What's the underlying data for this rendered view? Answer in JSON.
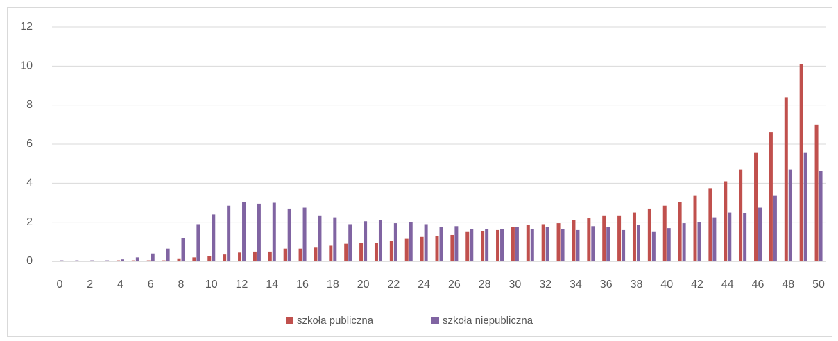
{
  "chart_data": {
    "type": "bar",
    "categories": [
      0,
      null,
      2,
      null,
      4,
      null,
      6,
      null,
      8,
      null,
      10,
      null,
      12,
      null,
      14,
      null,
      16,
      null,
      18,
      null,
      20,
      null,
      22,
      null,
      24,
      null,
      26,
      null,
      28,
      null,
      30,
      null,
      32,
      null,
      34,
      null,
      36,
      null,
      38,
      null,
      40,
      null,
      42,
      null,
      44,
      null,
      46,
      null,
      48,
      null,
      50
    ],
    "series": [
      {
        "name": "szkoła publiczna",
        "color": "#c0504d",
        "values": [
          0.01,
          0.01,
          0.01,
          0.02,
          0.05,
          0.05,
          0.05,
          0.05,
          0.15,
          0.2,
          0.25,
          0.35,
          0.45,
          0.5,
          0.5,
          0.65,
          0.65,
          0.7,
          0.8,
          0.9,
          0.95,
          0.95,
          1.05,
          1.15,
          1.25,
          1.3,
          1.35,
          1.5,
          1.55,
          1.6,
          1.75,
          1.85,
          1.9,
          1.95,
          2.1,
          2.2,
          2.35,
          2.35,
          2.5,
          2.7,
          2.85,
          3.05,
          3.35,
          3.75,
          4.1,
          4.7,
          5.55,
          6.6,
          8.4,
          10.1,
          7.0
        ]
      },
      {
        "name": "szkoła niepubliczna",
        "color": "#8064a2",
        "values": [
          0.05,
          0.05,
          0.05,
          0.05,
          0.1,
          0.2,
          0.4,
          0.65,
          1.2,
          1.9,
          2.4,
          2.85,
          3.05,
          2.95,
          3.0,
          2.7,
          2.75,
          2.35,
          2.25,
          1.9,
          2.05,
          2.1,
          1.95,
          2.0,
          1.9,
          1.75,
          1.8,
          1.65,
          1.65,
          1.65,
          1.75,
          1.65,
          1.75,
          1.65,
          1.6,
          1.8,
          1.75,
          1.6,
          1.85,
          1.5,
          1.7,
          1.95,
          2.0,
          2.25,
          2.5,
          2.45,
          2.75,
          3.35,
          4.7,
          5.55,
          4.65
        ]
      }
    ],
    "ylim": [
      0,
      12
    ],
    "yticks": [
      0,
      2,
      4,
      6,
      8,
      10,
      12
    ],
    "grid": true,
    "legend": "bottom"
  }
}
